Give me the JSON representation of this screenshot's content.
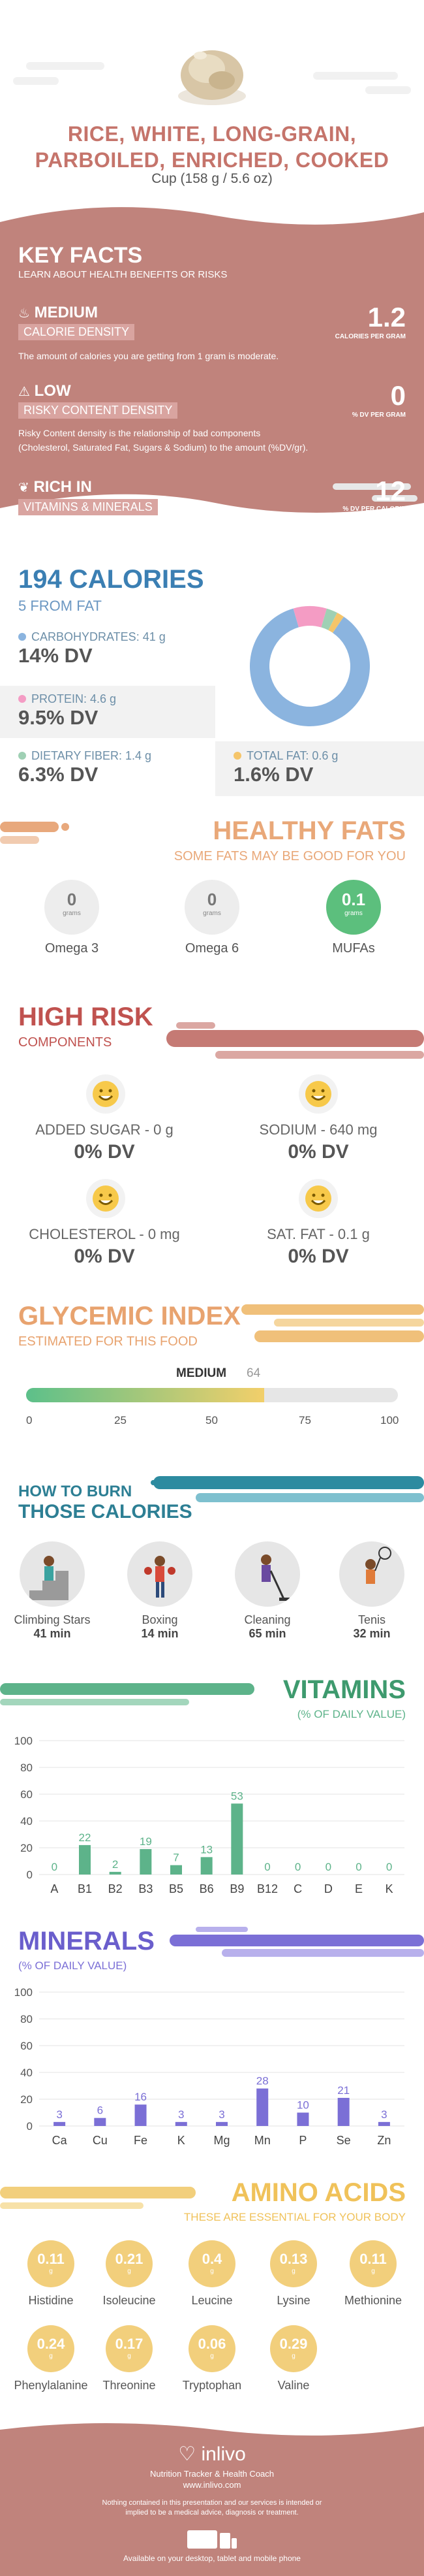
{
  "header": {
    "title": "RICE, WHITE, LONG-GRAIN, PARBOILED, ENRICHED, COOKED",
    "serving": "Cup (158 g / 5.6 oz)"
  },
  "key_facts": {
    "title": "KEY FACTS",
    "subtitle": "LEARN ABOUT HEALTH BENEFITS OR RISKS",
    "items": [
      {
        "level": "MEDIUM",
        "label": "CALORIE DENSITY",
        "value": "1.2",
        "unit": "CALORIES PER GRAM",
        "desc": "The amount of calories you are getting from 1 gram is moderate.",
        "icon": "flame-icon"
      },
      {
        "level": "LOW",
        "label": "RISKY CONTENT DENSITY",
        "value": "0",
        "unit": "% DV PER GRAM",
        "desc": "Risky Content density is the relationship of bad components (Cholesterol, Saturated Fat, Sugars & Sodium) to the amount (%DV/gr).",
        "icon": "warning-icon"
      },
      {
        "level": "RICH  IN",
        "label": "VITAMINS & MINERALS",
        "value": "12",
        "unit": "% DV PER CALORIE",
        "icon": "leaf-icon"
      }
    ]
  },
  "calories": {
    "title": "194 CALORIES",
    "subtitle": "5 FROM FAT",
    "items": [
      {
        "label": "CARBOHYDRATES: 41 g",
        "dv": "14% DV",
        "color": "#8bb4df"
      },
      {
        "label": "PROTEIN: 4.6 g",
        "dv": "9.5% DV",
        "color": "#f49cc4"
      },
      {
        "label": "DIETARY FIBER: 1.4 g",
        "dv": "6.3% DV",
        "color": "#9fd0b4"
      },
      {
        "label": "TOTAL FAT: 0.6 g",
        "dv": "1.6% DV",
        "color": "#f5c56a"
      }
    ]
  },
  "fats": {
    "title": "HEALTHY FATS",
    "subtitle": "SOME FATS MAY BE GOOD FOR YOU",
    "unit": "grams",
    "items": [
      {
        "name": "Omega 3",
        "value": "0"
      },
      {
        "name": "Omega 6",
        "value": "0"
      },
      {
        "name": "MUFAs",
        "value": "0.1"
      }
    ]
  },
  "risk": {
    "title": "HIGH RISK",
    "subtitle": "COMPONENTS",
    "items": [
      {
        "label": "ADDED SUGAR - 0 g",
        "dv": "0% DV"
      },
      {
        "label": "SODIUM - 640 mg",
        "dv": "0% DV"
      },
      {
        "label": "CHOLESTEROL - 0 mg",
        "dv": "0% DV"
      },
      {
        "label": "SAT. FAT - 0.1 g",
        "dv": "0% DV"
      }
    ]
  },
  "gi": {
    "title": "GLYCEMIC INDEX",
    "subtitle": "ESTIMATED FOR THIS FOOD",
    "level": "MEDIUM",
    "value": 64,
    "value_label": "64",
    "ticks": [
      "0",
      "25",
      "50",
      "75",
      "100"
    ]
  },
  "burn": {
    "title1": "HOW TO BURN",
    "title2": "THOSE CALORIES",
    "items": [
      {
        "name": "Climbing Stars",
        "time": "41 min",
        "icon": "stairs-icon"
      },
      {
        "name": "Boxing",
        "time": "14 min",
        "icon": "boxing-icon"
      },
      {
        "name": "Cleaning",
        "time": "65 min",
        "icon": "cleaning-icon"
      },
      {
        "name": "Tenis",
        "time": "32 min",
        "icon": "tennis-icon"
      }
    ]
  },
  "vitamins": {
    "title": "VITAMINS",
    "subtitle": "(% OF DAILY VALUE)",
    "color": "#5db38a",
    "yticks": [
      "100",
      "80",
      "60",
      "40",
      "20",
      "0"
    ]
  },
  "minerals": {
    "title": "MINERALS",
    "subtitle": "(% OF DAILY VALUE)",
    "color": "#7b6fd6",
    "yticks": [
      "100",
      "80",
      "60",
      "40",
      "20",
      "0"
    ]
  },
  "chart_data": [
    {
      "type": "bar",
      "title": "VITAMINS",
      "ylabel": "% OF DAILY VALUE",
      "categories": [
        "A",
        "B1",
        "B2",
        "B3",
        "B5",
        "B6",
        "B9",
        "B12",
        "C",
        "D",
        "E",
        "K"
      ],
      "values": [
        0,
        22,
        2,
        19,
        7,
        13,
        53,
        0,
        0,
        0,
        0,
        0
      ],
      "ylim": [
        0,
        100
      ]
    },
    {
      "type": "bar",
      "title": "MINERALS",
      "ylabel": "% OF DAILY VALUE",
      "categories": [
        "Ca",
        "Cu",
        "Fe",
        "K",
        "Mg",
        "Mn",
        "P",
        "Se",
        "Zn"
      ],
      "values": [
        3,
        6,
        16,
        3,
        3,
        28,
        10,
        21,
        3
      ],
      "ylim": [
        0,
        100
      ]
    },
    {
      "type": "pie",
      "title": "194 CALORIES",
      "categories": [
        "CARBOHYDRATES",
        "PROTEIN",
        "DIETARY FIBER",
        "TOTAL FAT"
      ],
      "values": [
        86,
        9,
        3,
        2
      ]
    }
  ],
  "amino": {
    "title": "AMINO ACIDS",
    "subtitle": "THESE ARE ESSENTIAL FOR YOUR BODY",
    "unit": "g",
    "items": [
      {
        "name": "Histidine",
        "value": "0.11"
      },
      {
        "name": "Isoleucine",
        "value": "0.21"
      },
      {
        "name": "Leucine",
        "value": "0.4"
      },
      {
        "name": "Lysine",
        "value": "0.13"
      },
      {
        "name": "Methionine",
        "value": "0.11"
      },
      {
        "name": "Phenylalanine",
        "value": "0.24"
      },
      {
        "name": "Threonine",
        "value": "0.17"
      },
      {
        "name": "Tryptophan",
        "value": "0.06"
      },
      {
        "name": "Valine",
        "value": "0.29"
      }
    ]
  },
  "footer": {
    "brand": "inlivo",
    "tagline": "Nutrition Tracker & Health Coach",
    "url": "www.inlivo.com",
    "disclaimer": "Nothing contained in this presentation and our services is intended or implied to be a medical advice, diagnosis or treatment.",
    "devices": "Available on your desktop, tablet and mobile phone"
  }
}
